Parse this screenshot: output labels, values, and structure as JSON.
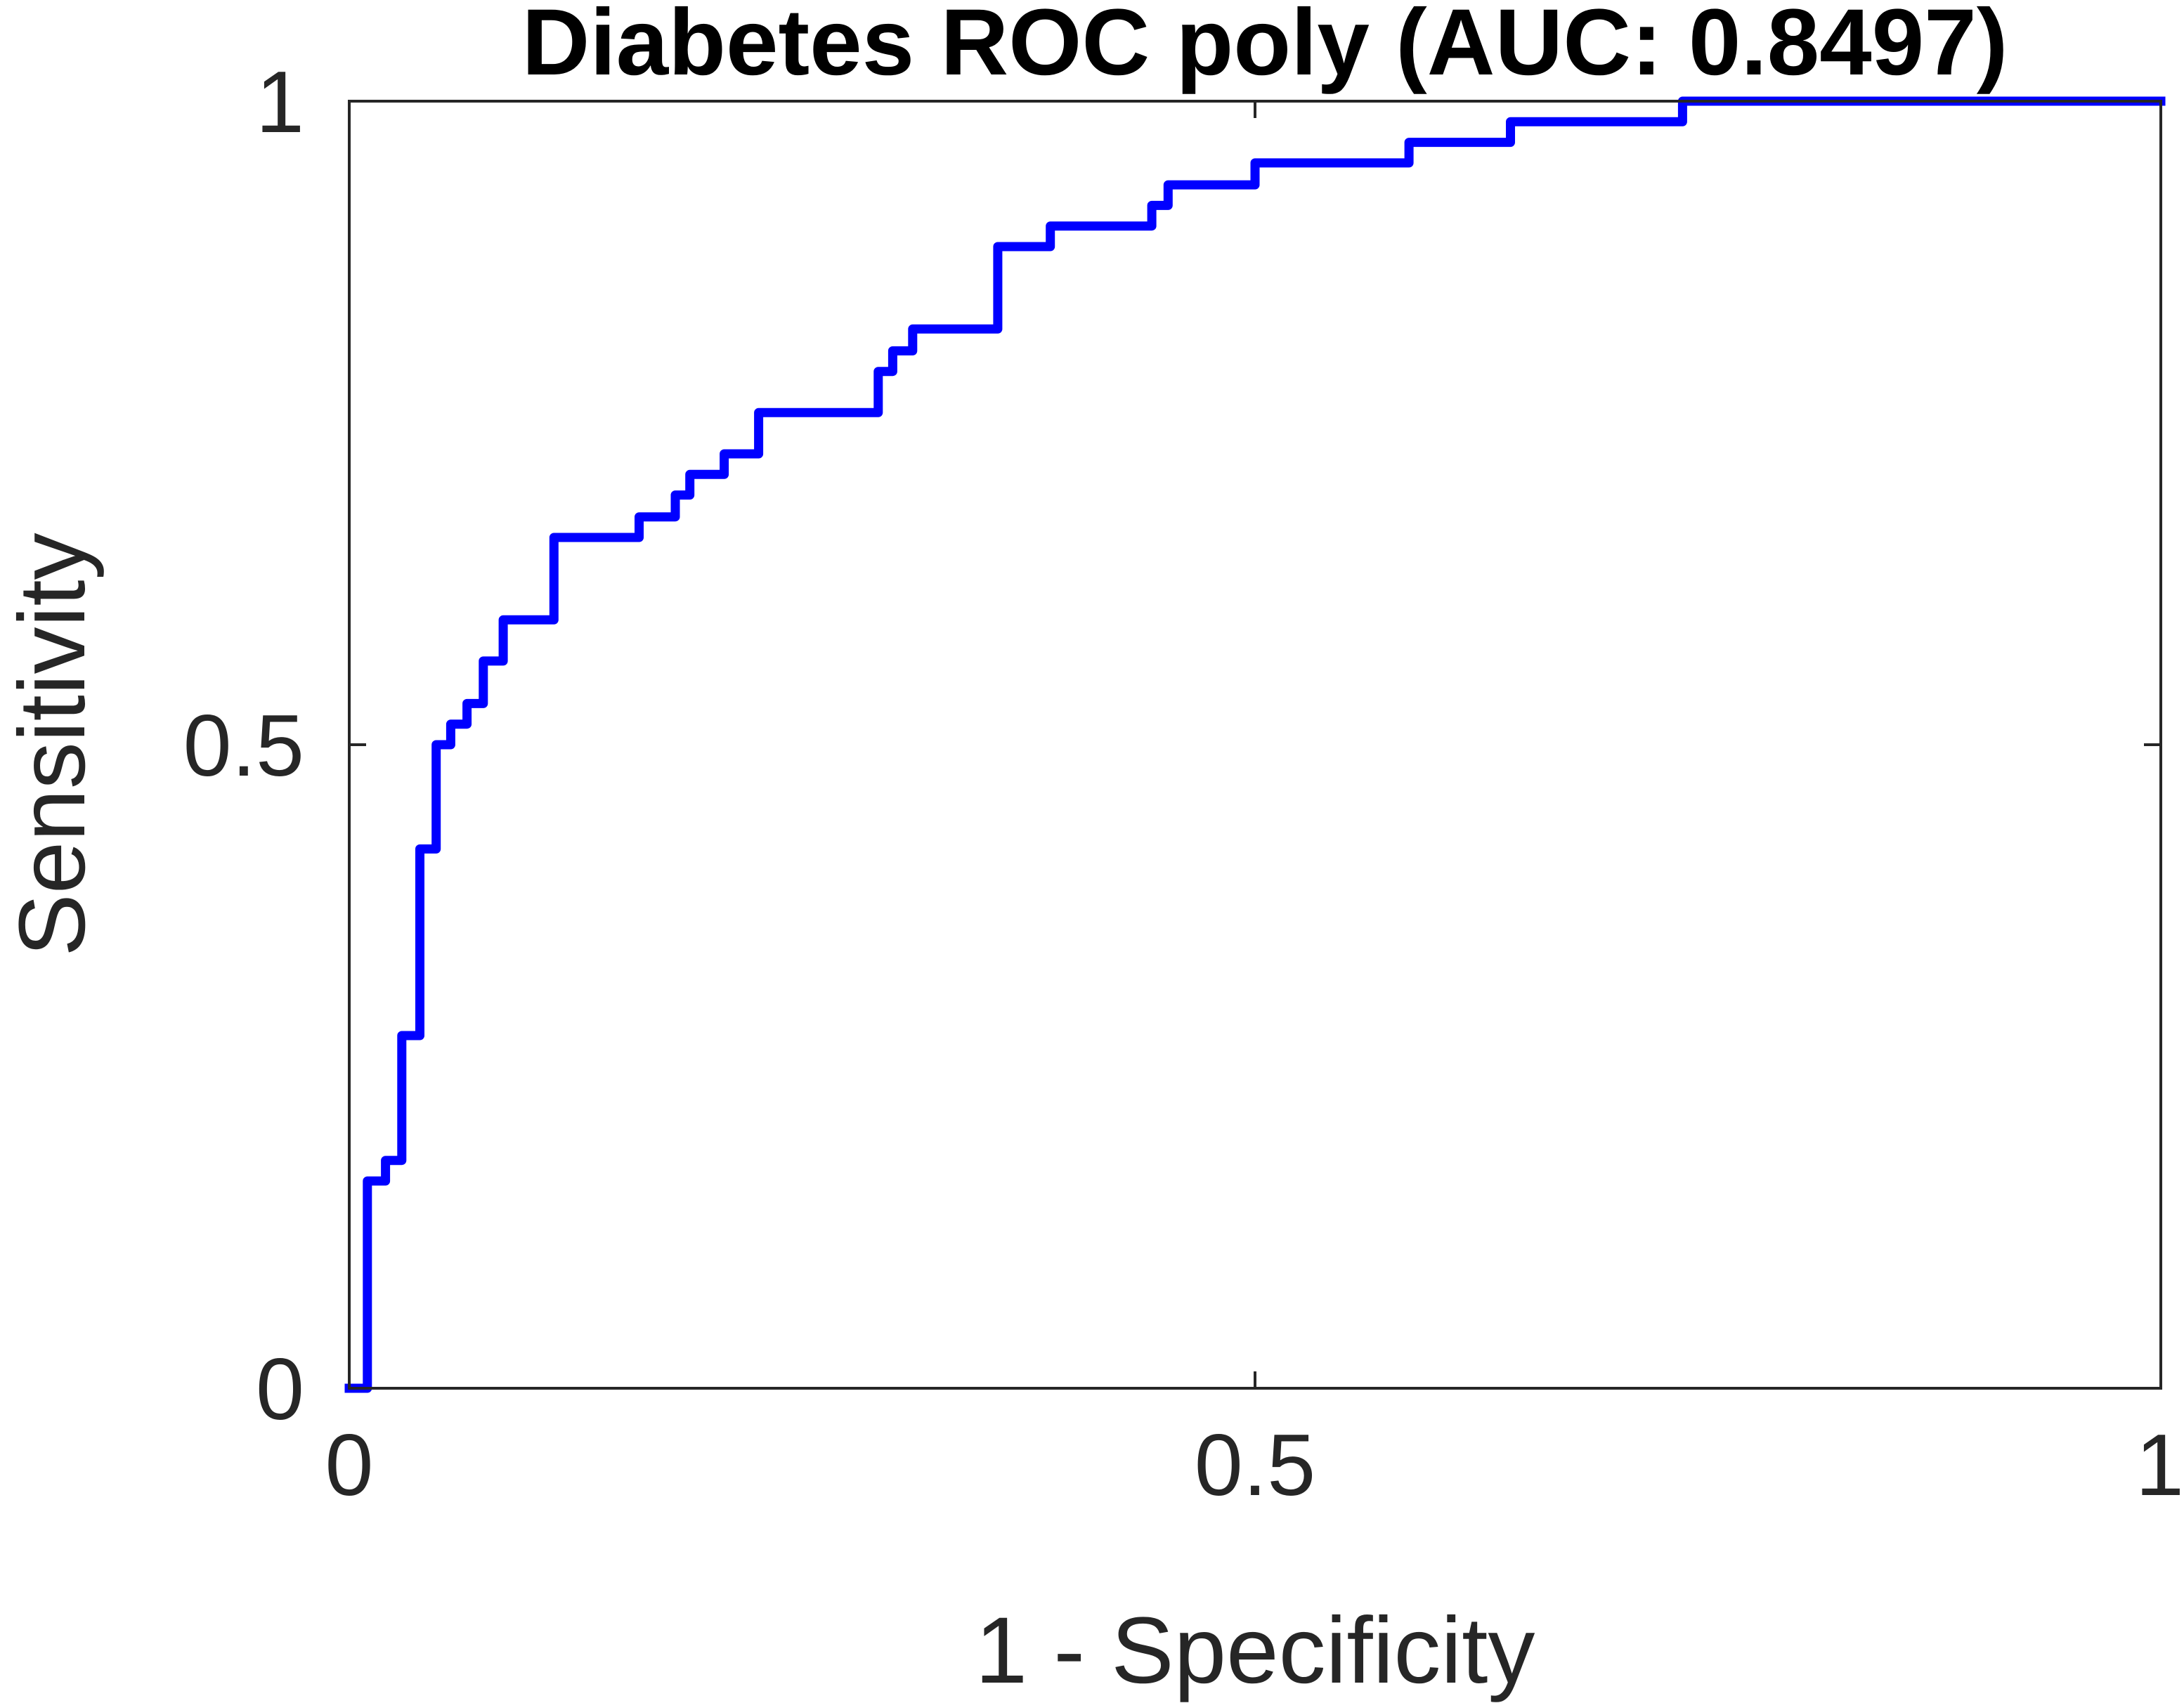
{
  "chart_data": {
    "type": "line",
    "title": "Diabetes ROC poly (AUC: 0.8497)",
    "xlabel": "1 - Specificity",
    "ylabel": "Sensitivity",
    "xlim": [
      0,
      1
    ],
    "ylim": [
      0,
      1
    ],
    "x_ticks": [
      {
        "value": 0,
        "label": "0"
      },
      {
        "value": 0.5,
        "label": "0.5"
      },
      {
        "value": 1,
        "label": "1"
      }
    ],
    "y_ticks": [
      {
        "value": 0,
        "label": "0"
      },
      {
        "value": 0.5,
        "label": "0.5"
      },
      {
        "value": 1,
        "label": "1"
      }
    ],
    "grid": false,
    "line_color": "#0000ff",
    "series": [
      {
        "step": "vertical-first",
        "points": [
          [
            0.0,
            0.0
          ],
          [
            0.01,
            0.0
          ],
          [
            0.01,
            0.161
          ],
          [
            0.02,
            0.161
          ],
          [
            0.02,
            0.177
          ],
          [
            0.029,
            0.177
          ],
          [
            0.029,
            0.274
          ],
          [
            0.039,
            0.274
          ],
          [
            0.039,
            0.419
          ],
          [
            0.048,
            0.419
          ],
          [
            0.048,
            0.5
          ],
          [
            0.056,
            0.5
          ],
          [
            0.056,
            0.516
          ],
          [
            0.065,
            0.516
          ],
          [
            0.065,
            0.532
          ],
          [
            0.074,
            0.532
          ],
          [
            0.074,
            0.565
          ],
          [
            0.085,
            0.565
          ],
          [
            0.085,
            0.597
          ],
          [
            0.113,
            0.597
          ],
          [
            0.113,
            0.661
          ],
          [
            0.16,
            0.661
          ],
          [
            0.16,
            0.677
          ],
          [
            0.18,
            0.677
          ],
          [
            0.18,
            0.694
          ],
          [
            0.188,
            0.694
          ],
          [
            0.188,
            0.71
          ],
          [
            0.207,
            0.71
          ],
          [
            0.207,
            0.726
          ],
          [
            0.226,
            0.726
          ],
          [
            0.226,
            0.758
          ],
          [
            0.292,
            0.758
          ],
          [
            0.292,
            0.79
          ],
          [
            0.3,
            0.79
          ],
          [
            0.3,
            0.806
          ],
          [
            0.311,
            0.806
          ],
          [
            0.311,
            0.823
          ],
          [
            0.358,
            0.823
          ],
          [
            0.358,
            0.887
          ],
          [
            0.387,
            0.887
          ],
          [
            0.387,
            0.903
          ],
          [
            0.443,
            0.903
          ],
          [
            0.443,
            0.919
          ],
          [
            0.452,
            0.919
          ],
          [
            0.452,
            0.935
          ],
          [
            0.5,
            0.935
          ],
          [
            0.5,
            0.952
          ],
          [
            0.585,
            0.952
          ],
          [
            0.585,
            0.968
          ],
          [
            0.641,
            0.968
          ],
          [
            0.641,
            0.984
          ],
          [
            0.736,
            0.984
          ],
          [
            0.736,
            1.0
          ],
          [
            1.0,
            1.0
          ]
        ]
      }
    ]
  }
}
